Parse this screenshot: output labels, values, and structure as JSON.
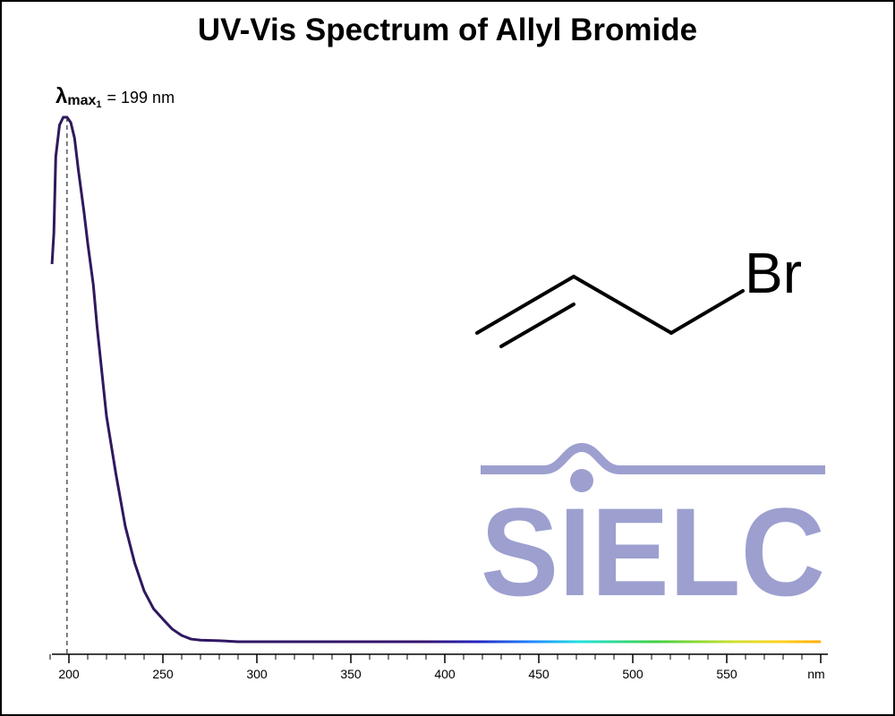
{
  "chart_data": {
    "type": "line",
    "title": "UV-Vis Spectrum of Allyl Bromide",
    "x": [
      191,
      192,
      193,
      195,
      197,
      199,
      201,
      203,
      205,
      208,
      210,
      213,
      215,
      220,
      225,
      230,
      235,
      240,
      245,
      250,
      255,
      260,
      265,
      270,
      280,
      290,
      300,
      350,
      400,
      450,
      500,
      550,
      600
    ],
    "series": [
      {
        "name": "Allyl Bromide",
        "color": "#2e1a5a",
        "values": [
          0.72,
          0.78,
          0.925,
          0.985,
          1.0,
          1.0,
          0.99,
          0.96,
          0.9,
          0.82,
          0.76,
          0.68,
          0.6,
          0.43,
          0.32,
          0.22,
          0.15,
          0.097,
          0.063,
          0.043,
          0.024,
          0.012,
          0.005,
          0.003,
          0.002,
          0,
          0,
          0,
          0,
          0,
          0,
          0,
          0
        ]
      }
    ],
    "xlim": [
      190,
      604
    ],
    "ylim": [
      0,
      1
    ],
    "xticks": [
      200,
      250,
      300,
      350,
      400,
      450,
      500,
      550,
      {
        "value": 600,
        "label": "nm"
      }
    ],
    "xminor_ticks": [
      190,
      210,
      220,
      230,
      240,
      260,
      270,
      280,
      290,
      310,
      320,
      330,
      340,
      360,
      370,
      380,
      390,
      410,
      420,
      430,
      440,
      460,
      470,
      480,
      490,
      510,
      520,
      530,
      540,
      560,
      570,
      580,
      590
    ],
    "peak_label": {
      "x": 199,
      "symbol": "λ",
      "subscript": "max",
      "index": "1",
      "text": "= 199 nm"
    },
    "structure_label": "Br",
    "logo": "SIELC"
  }
}
